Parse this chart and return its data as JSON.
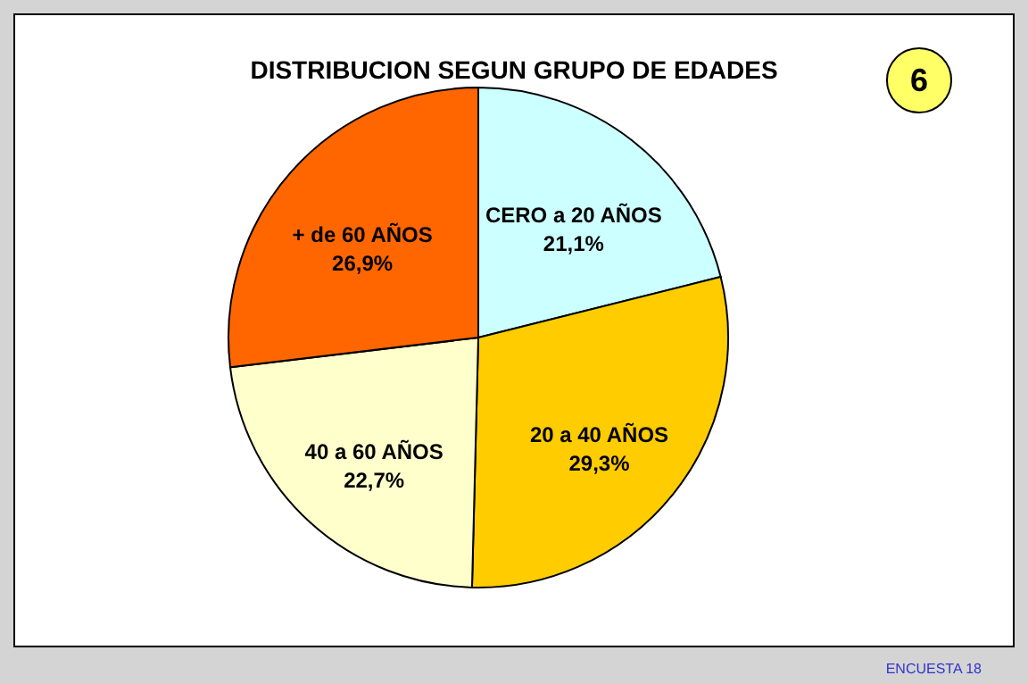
{
  "chart_data": {
    "type": "pie",
    "title": "DISTRIBUCION  SEGUN  GRUPO  DE  EDADES",
    "categories": [
      "CERO a 20 AÑOS",
      "20  a  40 AÑOS",
      "40  a  60 AÑOS",
      "+   de 60 AÑOS"
    ],
    "values": [
      21.1,
      29.3,
      22.7,
      26.9
    ],
    "colors": [
      "#ccffff",
      "#ffcc00",
      "#ffffcc",
      "#ff6600"
    ],
    "value_labels": [
      "21,1%",
      "29,3%",
      "22,7%",
      "26,9%"
    ],
    "annotations": [
      "6",
      "ENCUESTA 18"
    ]
  }
}
